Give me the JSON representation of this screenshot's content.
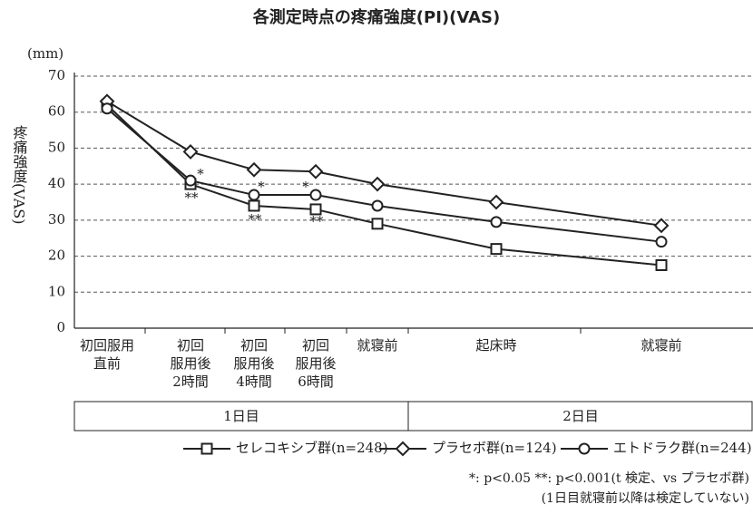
{
  "chart_data": {
    "type": "line",
    "title": "各測定時点の疼痛強度(PI)(VAS)",
    "y_unit": "(mm)",
    "y_label": "疼痛強度(VAS)",
    "categories": [
      [
        "初回服用",
        "直前"
      ],
      [
        "初回",
        "服用後",
        "2時間"
      ],
      [
        "初回",
        "服用後",
        "4時間"
      ],
      [
        "初回",
        "服用後",
        "6時間"
      ],
      [
        "就寝前"
      ],
      [
        "起床時"
      ],
      [
        "就寝前"
      ]
    ],
    "periods": [
      "1日目",
      "2日目"
    ],
    "series": [
      {
        "name": "セレコキシブ群(n=248)",
        "marker": "square",
        "color": "#222222",
        "values": [
          62,
          40,
          34,
          33,
          29,
          22,
          17.5
        ]
      },
      {
        "name": "プラセボ群(n=124)",
        "marker": "diamond",
        "color": "#222222",
        "values": [
          63,
          49,
          44,
          43.5,
          40,
          35,
          28.5
        ]
      },
      {
        "name": "エトドラク群(n=244)",
        "marker": "circle",
        "color": "#222222",
        "values": [
          61,
          41,
          37,
          37,
          34,
          29.5,
          24
        ]
      }
    ],
    "annotations": [
      "*",
      "**",
      "*",
      "**",
      "*",
      "**"
    ],
    "footnotes": [
      "*: p<0.05 **: p<0.001(t 検定、vs プラセボ群)",
      "(1日目就寝前以降は検定していない)"
    ],
    "ylim": [
      0,
      70
    ],
    "yticks": [
      0,
      10,
      20,
      30,
      40,
      50,
      60,
      70
    ],
    "grid": true
  }
}
